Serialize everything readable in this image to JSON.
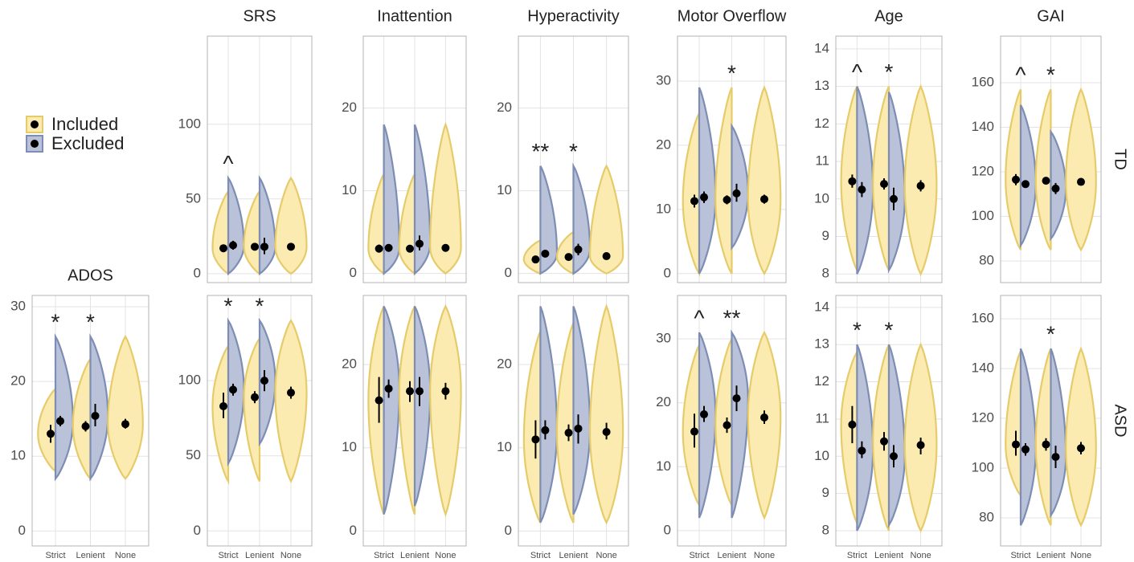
{
  "legend": [
    {
      "name": "Included",
      "color": "#fbebb0",
      "stroke": "#e6cb6b"
    },
    {
      "name": "Excluded",
      "color": "#b9c2d8",
      "stroke": "#7d8db3"
    }
  ],
  "chart_data": [
    {
      "type": "violin",
      "title": "SRS",
      "ylim": [
        -6,
        159
      ],
      "yticks": [
        0,
        50,
        100
      ],
      "grid": true,
      "included": {
        "values": [
          17,
          18,
          18
        ],
        "ci_low": [
          15,
          16,
          16
        ],
        "ci_high": [
          19,
          20,
          20
        ],
        "min": [
          0,
          0,
          0
        ],
        "max": [
          55,
          55,
          64
        ]
      },
      "excluded": {
        "values": [
          19,
          18,
          null
        ],
        "ci_low": [
          16,
          13,
          null
        ],
        "ci_high": [
          22,
          24,
          null
        ],
        "min": [
          0,
          0,
          null
        ],
        "max": [
          64,
          64,
          null
        ]
      },
      "annotations": [
        "^",
        null,
        null
      ]
    },
    {
      "type": "violin",
      "title": "Inattention",
      "ylim": [
        -1.1,
        28.7
      ],
      "yticks": [
        0,
        10,
        20
      ],
      "grid": true,
      "included": {
        "values": [
          3.0,
          3.0,
          3.1
        ],
        "ci_low": [
          2.6,
          2.7,
          2.8
        ],
        "ci_high": [
          3.5,
          3.4,
          3.4
        ],
        "min": [
          0,
          0,
          0
        ],
        "max": [
          12,
          12,
          18
        ]
      },
      "excluded": {
        "values": [
          3.1,
          3.6,
          null
        ],
        "ci_low": [
          2.8,
          2.8,
          null
        ],
        "ci_high": [
          3.5,
          4.6,
          null
        ],
        "min": [
          0,
          0,
          null
        ],
        "max": [
          18,
          18,
          null
        ]
      },
      "annotations": [
        null,
        null,
        null
      ]
    },
    {
      "type": "violin",
      "title": "Hyperactivity",
      "ylim": [
        -1.1,
        28.7
      ],
      "yticks": [
        0,
        10,
        20
      ],
      "grid": true,
      "included": {
        "values": [
          1.7,
          2.0,
          2.1
        ],
        "ci_low": [
          1.5,
          1.7,
          1.8
        ],
        "ci_high": [
          1.9,
          2.3,
          2.4
        ],
        "min": [
          0,
          0,
          0
        ],
        "max": [
          4,
          5,
          13
        ]
      },
      "excluded": {
        "values": [
          2.4,
          2.9,
          null
        ],
        "ci_low": [
          2.0,
          2.2,
          null
        ],
        "ci_high": [
          2.8,
          3.6,
          null
        ],
        "min": [
          0,
          0,
          null
        ],
        "max": [
          13,
          13,
          null
        ]
      },
      "annotations": [
        "**",
        "*",
        null
      ]
    },
    {
      "type": "violin",
      "title": "Motor Overflow",
      "ylim": [
        -1.4,
        37
      ],
      "yticks": [
        0,
        10,
        20,
        30
      ],
      "grid": true,
      "included": {
        "values": [
          11.3,
          11.5,
          11.6
        ],
        "ci_low": [
          10.3,
          10.8,
          10.9
        ],
        "ci_high": [
          12.3,
          12.2,
          12.3
        ],
        "min": [
          0,
          0,
          0
        ],
        "max": [
          25,
          29,
          29
        ]
      },
      "excluded": {
        "values": [
          11.9,
          12.5,
          null
        ],
        "ci_low": [
          11.0,
          11.2,
          null
        ],
        "ci_high": [
          12.8,
          14.0,
          null
        ],
        "min": [
          0,
          4,
          null
        ],
        "max": [
          29,
          23,
          null
        ]
      },
      "annotations": [
        null,
        "*",
        null
      ]
    },
    {
      "type": "violin",
      "title": "Age",
      "ylim": [
        7.77,
        14.34
      ],
      "yticks": [
        8,
        9,
        10,
        11,
        12,
        13,
        14
      ],
      "grid": true,
      "included": {
        "values": [
          10.47,
          10.4,
          10.35
        ],
        "ci_low": [
          10.3,
          10.25,
          10.2
        ],
        "ci_high": [
          10.65,
          10.55,
          10.5
        ],
        "min": [
          8.1,
          8.1,
          8
        ],
        "max": [
          13,
          13,
          13
        ]
      },
      "excluded": {
        "values": [
          10.25,
          10.0,
          null
        ],
        "ci_low": [
          10.05,
          9.7,
          null
        ],
        "ci_high": [
          10.45,
          10.3,
          null
        ],
        "min": [
          8,
          8.1,
          null
        ],
        "max": [
          13,
          12.85,
          null
        ]
      },
      "annotations": [
        "^",
        "*",
        null
      ]
    },
    {
      "type": "violin",
      "title": "GAI",
      "row_label": "TD",
      "ylim": [
        70.3,
        180.9
      ],
      "yticks": [
        80,
        100,
        120,
        140,
        160
      ],
      "grid": true,
      "included": {
        "values": [
          116.5,
          116,
          115.5
        ],
        "ci_low": [
          114,
          114.5,
          114
        ],
        "ci_high": [
          119,
          117.5,
          117
        ],
        "min": [
          85,
          85,
          85
        ],
        "max": [
          157,
          157,
          157
        ]
      },
      "excluded": {
        "values": [
          114.5,
          112.5,
          null
        ],
        "ci_low": [
          113,
          110,
          null
        ],
        "ci_high": [
          116,
          115,
          null
        ],
        "min": [
          87,
          90,
          null
        ],
        "max": [
          150,
          138,
          null
        ]
      },
      "annotations": [
        "^",
        "*",
        null
      ]
    },
    {
      "type": "violin",
      "title": "ADOS",
      "categories": [
        "Strict",
        "Lenient",
        "None"
      ],
      "ylim": [
        -2,
        31.5
      ],
      "yticks": [
        0,
        10,
        20,
        30
      ],
      "grid": true,
      "included": {
        "values": [
          13,
          14,
          14.3
        ],
        "ci_low": [
          11.8,
          13.3,
          13.7
        ],
        "ci_high": [
          14.2,
          14.7,
          15
        ],
        "min": [
          8,
          7,
          7
        ],
        "max": [
          19,
          23,
          26
        ]
      },
      "excluded": {
        "values": [
          14.7,
          15.4,
          null
        ],
        "ci_low": [
          14,
          14,
          null
        ],
        "ci_high": [
          15.4,
          17,
          null
        ],
        "min": [
          7,
          7,
          null
        ],
        "max": [
          26,
          26,
          null
        ]
      },
      "annotations": [
        "*",
        "*",
        null
      ]
    },
    {
      "type": "violin",
      "categories": [
        "Strict",
        "Lenient",
        "None"
      ],
      "ylim": [
        -10,
        156.7
      ],
      "yticks": [
        0,
        50,
        100
      ],
      "grid": true,
      "included": {
        "values": [
          83,
          89,
          92
        ],
        "ci_low": [
          75,
          85,
          88
        ],
        "ci_high": [
          92,
          93,
          96
        ],
        "min": [
          33,
          33,
          33
        ],
        "max": [
          123,
          128,
          140
        ]
      },
      "excluded": {
        "values": [
          94,
          100,
          null
        ],
        "ci_low": [
          90,
          93,
          null
        ],
        "ci_high": [
          98,
          107,
          null
        ],
        "min": [
          45,
          58,
          null
        ],
        "max": [
          140,
          140,
          null
        ]
      },
      "annotations": [
        "*",
        "*",
        null
      ]
    },
    {
      "type": "violin",
      "categories": [
        "Strict",
        "Lenient",
        "None"
      ],
      "ylim": [
        -1.8,
        28.3
      ],
      "yticks": [
        0,
        10,
        20
      ],
      "grid": true,
      "included": {
        "values": [
          15.7,
          16.8,
          16.8
        ],
        "ci_low": [
          13,
          15.5,
          15.8
        ],
        "ci_high": [
          18.5,
          18,
          17.8
        ],
        "min": [
          2,
          2,
          2
        ],
        "max": [
          27,
          27,
          27
        ]
      },
      "excluded": {
        "values": [
          17.1,
          16.8,
          null
        ],
        "ci_low": [
          16,
          15,
          null
        ],
        "ci_high": [
          18.2,
          18.5,
          null
        ],
        "min": [
          2,
          3,
          null
        ],
        "max": [
          27,
          27,
          null
        ]
      },
      "annotations": [
        null,
        null,
        null
      ]
    },
    {
      "type": "violin",
      "categories": [
        "Strict",
        "Lenient",
        "None"
      ],
      "ylim": [
        -1.8,
        28.3
      ],
      "yticks": [
        0,
        10,
        20
      ],
      "grid": true,
      "included": {
        "values": [
          11,
          11.8,
          11.9
        ],
        "ci_low": [
          8.7,
          10.8,
          11
        ],
        "ci_high": [
          13.3,
          12.8,
          13
        ],
        "min": [
          1,
          1,
          1
        ],
        "max": [
          24,
          25,
          27
        ]
      },
      "excluded": {
        "values": [
          12.1,
          12.3,
          null
        ],
        "ci_low": [
          11,
          10.5,
          null
        ],
        "ci_high": [
          13.3,
          14,
          null
        ],
        "min": [
          1,
          2,
          null
        ],
        "max": [
          27,
          27,
          null
        ]
      },
      "annotations": [
        null,
        null,
        null
      ]
    },
    {
      "type": "violin",
      "categories": [
        "Strict",
        "Lenient",
        "None"
      ],
      "ylim": [
        -2.4,
        36.8
      ],
      "yticks": [
        0,
        10,
        20,
        30
      ],
      "grid": true,
      "included": {
        "values": [
          15.5,
          16.5,
          17.7
        ],
        "ci_low": [
          13,
          15.3,
          16.7
        ],
        "ci_high": [
          18.3,
          17.7,
          18.8
        ],
        "min": [
          4,
          4,
          2
        ],
        "max": [
          29,
          30,
          31
        ]
      },
      "excluded": {
        "values": [
          18.2,
          20.7,
          null
        ],
        "ci_low": [
          17,
          18.7,
          null
        ],
        "ci_high": [
          19.5,
          22.7,
          null
        ],
        "min": [
          2,
          2,
          null
        ],
        "max": [
          31,
          31,
          null
        ]
      },
      "annotations": [
        "^",
        "**",
        null
      ]
    },
    {
      "type": "violin",
      "categories": [
        "Strict",
        "Lenient",
        "None"
      ],
      "ylim": [
        7.59,
        14.32
      ],
      "yticks": [
        8,
        9,
        10,
        11,
        12,
        13,
        14
      ],
      "grid": true,
      "included": {
        "values": [
          10.85,
          10.4,
          10.3
        ],
        "ci_low": [
          10.35,
          10.15,
          10.05
        ],
        "ci_high": [
          11.35,
          10.65,
          10.5
        ],
        "min": [
          8.2,
          8,
          8
        ],
        "max": [
          12.8,
          13,
          13
        ]
      },
      "excluded": {
        "values": [
          10.15,
          10.0,
          null
        ],
        "ci_low": [
          9.95,
          9.7,
          null
        ],
        "ci_high": [
          10.4,
          10.3,
          null
        ],
        "min": [
          8,
          8.15,
          null
        ],
        "max": [
          13,
          13,
          null
        ]
      },
      "annotations": [
        "*",
        "*",
        null
      ]
    },
    {
      "type": "violin",
      "row_label": "ASD",
      "categories": [
        "Strict",
        "Lenient",
        "None"
      ],
      "ylim": [
        68.7,
        169.4
      ],
      "yticks": [
        80,
        100,
        120,
        140,
        160
      ],
      "grid": true,
      "included": {
        "values": [
          109.5,
          109.5,
          108
        ],
        "ci_low": [
          105,
          107,
          105.5
        ],
        "ci_high": [
          115,
          112,
          110.5
        ],
        "min": [
          89,
          77,
          77
        ],
        "max": [
          147,
          148,
          148
        ]
      },
      "excluded": {
        "values": [
          107.5,
          104.5,
          null
        ],
        "ci_low": [
          105,
          100,
          null
        ],
        "ci_high": [
          110,
          109,
          null
        ],
        "min": [
          77,
          81,
          null
        ],
        "max": [
          148,
          148,
          null
        ]
      },
      "annotations": [
        null,
        "*",
        null
      ]
    }
  ]
}
